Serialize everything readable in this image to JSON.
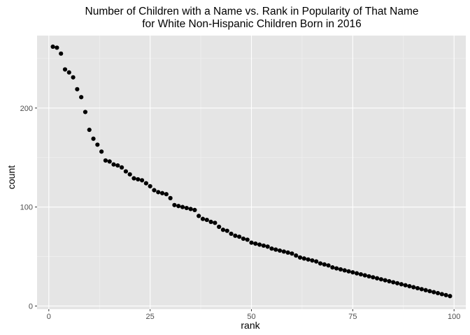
{
  "chart_data": {
    "type": "scatter",
    "title_line1": "Number of Children with a Name vs. Rank in Popularity of That Name",
    "title_line2": "for White Non-Hispanic Children Born in 2016",
    "xlabel": "rank",
    "ylabel": "count",
    "xlim": [
      -2.9,
      102.9
    ],
    "ylim": [
      -3.2,
      273.2
    ],
    "xticks": [
      0,
      25,
      50,
      75,
      100
    ],
    "xticklabels": [
      "0",
      "25",
      "50",
      "75",
      "100"
    ],
    "yticks": [
      0,
      100,
      200
    ],
    "yticklabels": [
      "0",
      "100",
      "200"
    ],
    "grid": true,
    "legend": "none",
    "colors": {
      "panel_background": "#e5e5e5",
      "grid_major": "#ffffff",
      "grid_minor": "#f2f2f2",
      "point": "#000000",
      "tick_mark": "#333333"
    },
    "x": [
      1,
      2,
      3,
      4,
      5,
      6,
      7,
      8,
      9,
      10,
      11,
      12,
      13,
      14,
      15,
      16,
      17,
      18,
      19,
      20,
      21,
      22,
      23,
      24,
      25,
      26,
      27,
      28,
      29,
      30,
      31,
      32,
      33,
      34,
      35,
      36,
      37,
      38,
      39,
      40,
      41,
      42,
      43,
      44,
      45,
      46,
      47,
      48,
      49,
      50,
      51,
      52,
      53,
      54,
      55,
      56,
      57,
      58,
      59,
      60,
      61,
      62,
      63,
      64,
      65,
      66,
      67,
      68,
      69,
      70,
      71,
      72,
      73,
      74,
      75,
      76,
      77,
      78,
      79,
      80,
      81,
      82,
      83,
      84,
      85,
      86,
      87,
      88,
      89,
      90,
      91,
      92,
      93,
      94,
      95,
      96,
      97,
      98,
      99
    ],
    "y": [
      262,
      261,
      255,
      239,
      236,
      231,
      219,
      211,
      196,
      178,
      169,
      163,
      156,
      147,
      146,
      143,
      142,
      140,
      136,
      133,
      129,
      128,
      127,
      124,
      121,
      117,
      115,
      114,
      113,
      109,
      102,
      101,
      100,
      99,
      98,
      97,
      91,
      88,
      87,
      85,
      84,
      80,
      77,
      76,
      73,
      71,
      70,
      68,
      67,
      64,
      63,
      62,
      61,
      60,
      58,
      57,
      56,
      55,
      54,
      53,
      51,
      49,
      48,
      47,
      46,
      45,
      43,
      42,
      41,
      39,
      38,
      37,
      36,
      35,
      34,
      33,
      32,
      31,
      30,
      29,
      28,
      27,
      26,
      25,
      24,
      23,
      22,
      21,
      20,
      19,
      18,
      17,
      16,
      15,
      14,
      13,
      12,
      11,
      10
    ]
  }
}
